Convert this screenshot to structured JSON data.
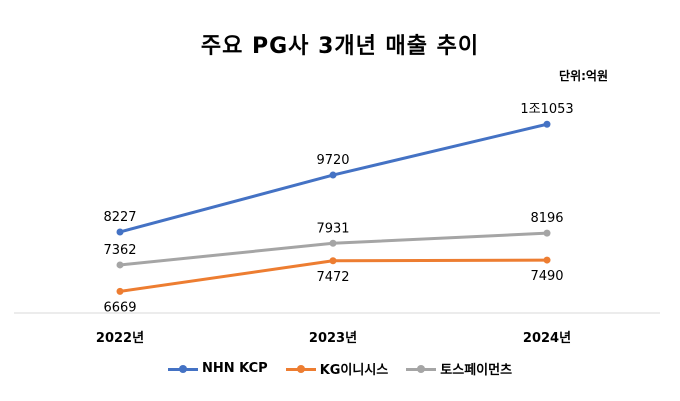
{
  "chart_data": {
    "type": "line",
    "title": "주요 PG사 3개년 매출 추이",
    "unit": "단위:억원",
    "categories": [
      "2022년",
      "2023년",
      "2024년"
    ],
    "series": [
      {
        "name": "NHN KCP",
        "color": "#4472C4",
        "values": [
          8227,
          9720,
          11053
        ],
        "labels": [
          "8227",
          "9720",
          "1조1053"
        ],
        "label_pos": "above"
      },
      {
        "name": "KG이니시스",
        "color": "#ED7D31",
        "values": [
          6669,
          7472,
          7490
        ],
        "labels": [
          "6669",
          "7472",
          "7490"
        ],
        "label_pos": "below"
      },
      {
        "name": "토스페이먼츠",
        "color": "#A5A5A5",
        "values": [
          7362,
          7931,
          8196
        ],
        "labels": [
          "7362",
          "7931",
          "8196"
        ],
        "label_pos": "above"
      }
    ],
    "ylim": [
      5000,
      13000
    ],
    "grid": false,
    "legend": "bottom"
  }
}
